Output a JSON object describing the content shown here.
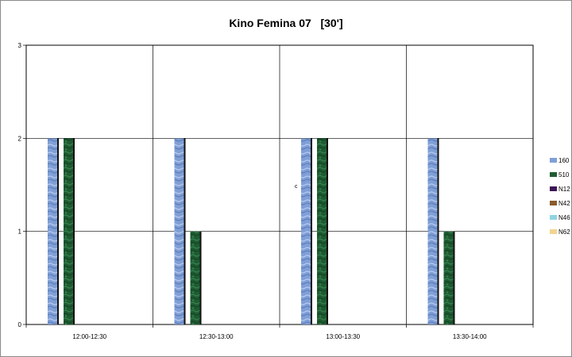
{
  "chart_data": {
    "type": "bar",
    "title": "Kino Femina 07   [30']",
    "categories": [
      "12:00-12:30",
      "12:30-13:00",
      "13:00-13:30",
      "13:30-14:00"
    ],
    "series": [
      {
        "name": "160",
        "values": [
          2,
          2,
          2,
          2
        ],
        "color": "#7f9fd6"
      },
      {
        "name": "510",
        "values": [
          2,
          1,
          2,
          1
        ],
        "color": "#1e5c32"
      },
      {
        "name": "N12",
        "values": [
          0,
          0,
          0,
          0
        ],
        "color": "#3d1456"
      },
      {
        "name": "N42",
        "values": [
          0,
          0,
          0,
          0
        ],
        "color": "#8a5a2c"
      },
      {
        "name": "N46",
        "values": [
          0,
          0,
          0,
          0
        ],
        "color": "#8fd4e0"
      },
      {
        "name": "N62",
        "values": [
          0,
          0,
          0,
          0
        ],
        "color": "#f1d58f"
      }
    ],
    "yticks": [
      0,
      1,
      2,
      3
    ],
    "ylim": [
      0,
      3
    ],
    "grid": true,
    "legend_position": "right"
  },
  "annotations": {
    "stray_glyph": "c"
  }
}
